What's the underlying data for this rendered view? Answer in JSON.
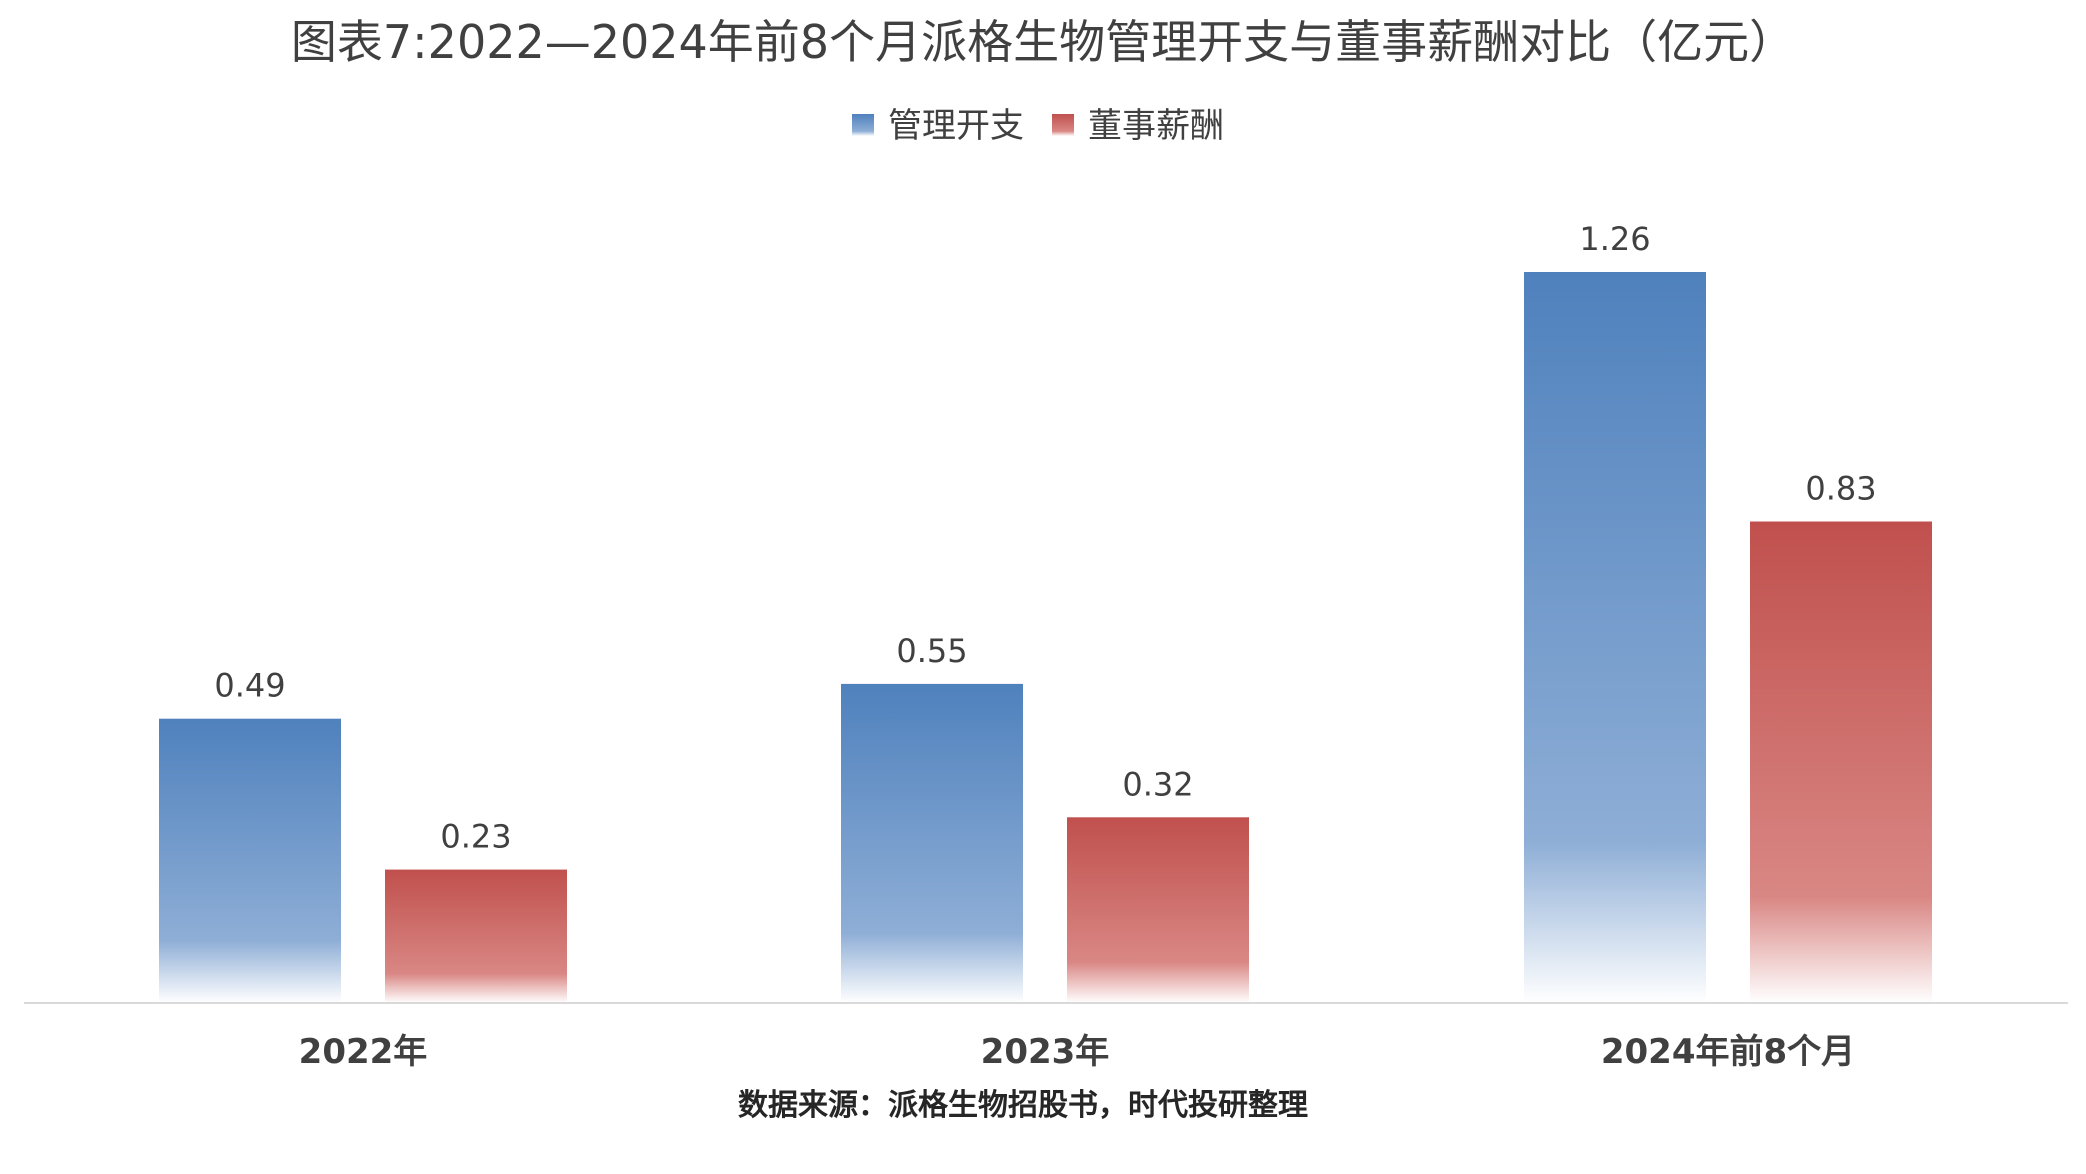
{
  "colors": {
    "series_blue": "#4f81bd",
    "series_red": "#c0504d",
    "text_dark": "#404040",
    "axis": "#d9d9d9"
  },
  "chart_data": {
    "type": "bar",
    "title": "图表7:2022—2024年前8个月派格生物管理开支与董事薪酬对比（亿元）",
    "source": "数据来源：派格生物招股书，时代投研整理",
    "categories": [
      "2022年",
      "2023年",
      "2024年前8个月"
    ],
    "series": [
      {
        "name": "管理开支",
        "values": [
          0.49,
          0.55,
          1.26
        ]
      },
      {
        "name": "董事薪酬",
        "values": [
          0.23,
          0.32,
          0.83
        ]
      }
    ],
    "data_labels": [
      [
        "0.49",
        "0.55",
        "1.26"
      ],
      [
        "0.23",
        "0.32",
        "0.83"
      ]
    ],
    "ylim": [
      0,
      1.26
    ],
    "legend_position": "top-center",
    "grid": false
  }
}
